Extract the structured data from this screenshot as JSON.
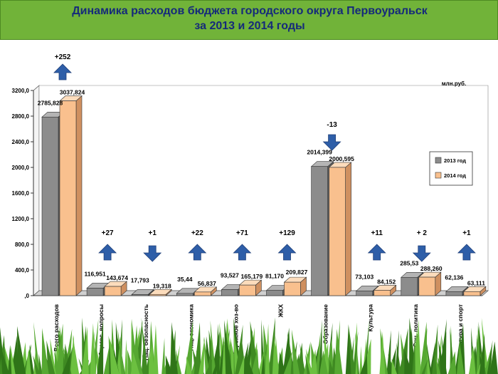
{
  "title": {
    "line1": "Динамика расходов бюджета городского округа Первоуральск",
    "line2": "за 2013 и 2014 годы"
  },
  "colors": {
    "banner": "#71b339",
    "title_text": "#152a7a",
    "bar_2013_front": "#8c8c8c",
    "bar_2013_top": "#b4b4b4",
    "bar_2013_side": "#5e5e5e",
    "bar_2014_front": "#f9c08e",
    "bar_2014_top": "#fcdcbc",
    "bar_2014_side": "#cf9060",
    "arrow": "#2e5ea8",
    "grass": "#4c9a2a"
  },
  "chart_data": {
    "type": "bar",
    "unit": "млн.руб.",
    "categories": [
      "Всего расходов",
      "Общегос. вопросы",
      "Нац. безопасность",
      "Нац. экономика",
      "Дорожное хоз-во",
      "ЖКХ",
      "Образование",
      "Культура",
      "Соц. политика",
      "Физкультура и спорт"
    ],
    "series": [
      {
        "name": "2013 год",
        "values": [
          2785.828,
          116.951,
          17.793,
          35.44,
          93.527,
          81.17,
          2014.399,
          73.103,
          285.53,
          62.136
        ],
        "labels": [
          "2785,828",
          "116,951",
          "17,793",
          "35,44",
          "93,527",
          "81,170",
          "2014,399",
          "73,103",
          "285,53",
          "62,136"
        ]
      },
      {
        "name": "2014 год",
        "values": [
          3037.824,
          143.674,
          19.318,
          56.837,
          165.179,
          209.827,
          2000.595,
          84.152,
          288.26,
          63.111
        ],
        "labels": [
          "3037,824",
          "143,674",
          "19,318",
          "56,837",
          "165,179",
          "209,827",
          "2000,595",
          "84,152",
          "288,260",
          "63,111"
        ]
      }
    ],
    "changes": [
      {
        "text": "+252",
        "direction": "up"
      },
      {
        "text": "+27",
        "direction": "up"
      },
      {
        "text": "+1",
        "direction": "down"
      },
      {
        "text": "+22",
        "direction": "up"
      },
      {
        "text": "+71",
        "direction": "up"
      },
      {
        "text": "+129",
        "direction": "up"
      },
      {
        "text": "-13",
        "direction": "down"
      },
      {
        "text": "+11",
        "direction": "up"
      },
      {
        "text": "+ 2",
        "direction": "down"
      },
      {
        "text": "+1",
        "direction": "up"
      }
    ],
    "ylim": [
      0,
      3200
    ],
    "yticks": [
      0,
      400,
      800,
      1200,
      1600,
      2000,
      2400,
      2800,
      3200
    ],
    "ytick_labels": [
      ",0",
      "400,0",
      "800,0",
      "1200,0",
      "1600,0",
      "2000,0",
      "2400,0",
      "2800,0",
      "3200,0"
    ],
    "grid": false,
    "legend": "right"
  }
}
